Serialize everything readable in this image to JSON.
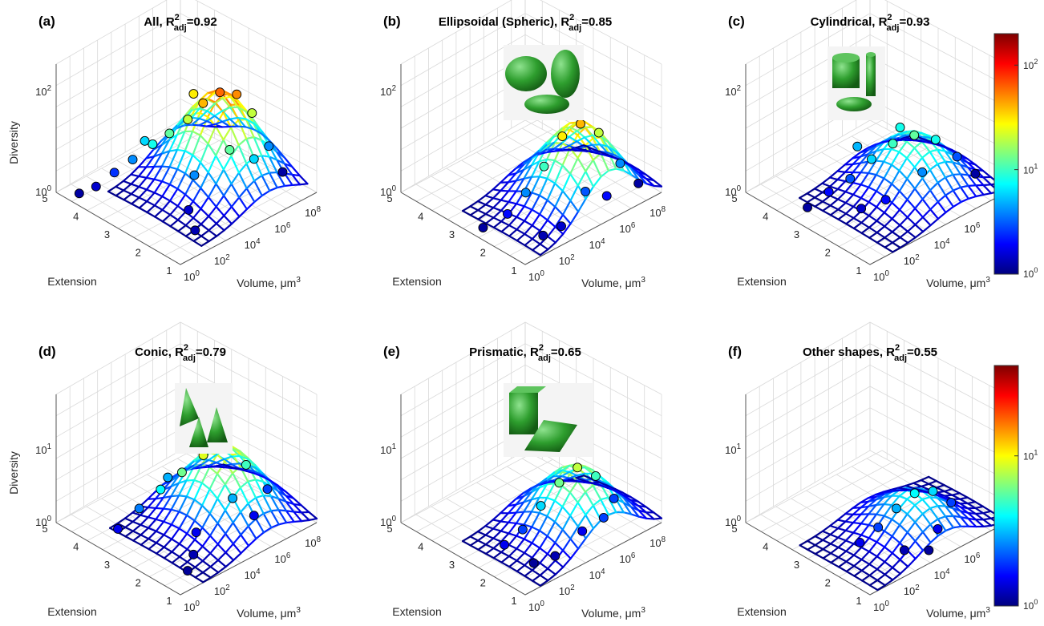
{
  "chart_data": [
    {
      "type": "surface",
      "panel": "(a)",
      "title": "All, ",
      "r2_value": "0.92",
      "xlabel": "Volume, μm",
      "ylabel": "Extension",
      "zlabel": "Diversity",
      "x_ticks": [
        "10^0",
        "10^2",
        "10^4",
        "10^6",
        "10^8"
      ],
      "y_ticks": [
        "1",
        "2",
        "3",
        "4",
        "5"
      ],
      "z_ticks": [
        "10^0",
        "10^2"
      ],
      "z_scale": "log",
      "zlim": [
        1,
        200
      ],
      "shape_icon": "",
      "points": [
        {
          "x": 0.5,
          "y": 4.5,
          "z": 1.2
        },
        {
          "x": 1.2,
          "y": 4.3,
          "z": 1.5
        },
        {
          "x": 2.0,
          "y": 4.1,
          "z": 2.5
        },
        {
          "x": 2.8,
          "y": 3.9,
          "z": 4
        },
        {
          "x": 3.5,
          "y": 3.6,
          "z": 8
        },
        {
          "x": 4.2,
          "y": 3.4,
          "z": 12
        },
        {
          "x": 5.0,
          "y": 3.2,
          "z": 20
        },
        {
          "x": 5.6,
          "y": 3.0,
          "z": 40
        },
        {
          "x": 6.3,
          "y": 2.8,
          "z": 60
        },
        {
          "x": 7.0,
          "y": 2.6,
          "z": 50
        },
        {
          "x": 7.6,
          "y": 2.4,
          "z": 20
        },
        {
          "x": 8.3,
          "y": 2.2,
          "z": 4
        },
        {
          "x": 8.8,
          "y": 2.0,
          "z": 1.2
        },
        {
          "x": 4.0,
          "y": 2.5,
          "z": 4
        },
        {
          "x": 5.3,
          "y": 2.0,
          "z": 12
        },
        {
          "x": 6.5,
          "y": 1.8,
          "z": 6
        },
        {
          "x": 3.0,
          "y": 2.2,
          "z": 1.5
        },
        {
          "x": 2.2,
          "y": 1.6,
          "z": 1.3
        },
        {
          "x": 6.2,
          "y": 3.6,
          "z": 30
        },
        {
          "x": 3.8,
          "y": 4.0,
          "z": 6
        }
      ]
    },
    {
      "type": "surface",
      "panel": "(b)",
      "title": "Ellipsoidal (Spheric), ",
      "r2_value": "0.85",
      "xlabel": "Volume, μm",
      "ylabel": "Extension",
      "zlabel": "",
      "x_ticks": [
        "10^0",
        "10^2",
        "10^4",
        "10^6",
        "10^8"
      ],
      "y_ticks": [
        "1",
        "2",
        "3",
        "4",
        "5"
      ],
      "z_ticks": [
        "10^0",
        "10^2"
      ],
      "z_scale": "log",
      "zlim": [
        1,
        200
      ],
      "shape_icon": "ellipsoids",
      "points": [
        {
          "x": 0.5,
          "y": 2.6,
          "z": 1.2
        },
        {
          "x": 1.5,
          "y": 2.3,
          "z": 2
        },
        {
          "x": 2.5,
          "y": 2.2,
          "z": 4
        },
        {
          "x": 3.5,
          "y": 2.1,
          "z": 10
        },
        {
          "x": 4.5,
          "y": 2.0,
          "z": 30
        },
        {
          "x": 5.5,
          "y": 1.9,
          "z": 40
        },
        {
          "x": 6.5,
          "y": 1.8,
          "z": 20
        },
        {
          "x": 7.5,
          "y": 1.6,
          "z": 4
        },
        {
          "x": 8.5,
          "y": 1.5,
          "z": 1.2
        },
        {
          "x": 2.0,
          "y": 1.4,
          "z": 1.3
        },
        {
          "x": 3.0,
          "y": 1.3,
          "z": 1.5
        },
        {
          "x": 5.0,
          "y": 1.5,
          "z": 3
        },
        {
          "x": 6.0,
          "y": 1.3,
          "z": 2
        }
      ]
    },
    {
      "type": "surface",
      "panel": "(c)",
      "title": "Cylindrical, ",
      "r2_value": "0.93",
      "xlabel": "Volume, μm",
      "ylabel": "Extension",
      "zlabel": "",
      "x_ticks": [
        "10^0",
        "10^2",
        "10^4",
        "10^6",
        "10^8"
      ],
      "y_ticks": [
        "1",
        "2",
        "3",
        "4",
        "5"
      ],
      "z_ticks": [
        "10^0",
        "10^2"
      ],
      "z_scale": "log",
      "zlim": [
        1,
        200
      ],
      "shape_icon": "cylinders",
      "points": [
        {
          "x": 1.0,
          "y": 3.5,
          "z": 1.2
        },
        {
          "x": 2.0,
          "y": 3.3,
          "z": 2
        },
        {
          "x": 3.0,
          "y": 3.1,
          "z": 3
        },
        {
          "x": 4.0,
          "y": 2.9,
          "z": 6
        },
        {
          "x": 5.0,
          "y": 2.7,
          "z": 10
        },
        {
          "x": 6.0,
          "y": 2.5,
          "z": 12
        },
        {
          "x": 7.0,
          "y": 2.3,
          "z": 8
        },
        {
          "x": 8.0,
          "y": 2.1,
          "z": 3
        },
        {
          "x": 8.8,
          "y": 1.9,
          "z": 1.2
        },
        {
          "x": 3.5,
          "y": 2.2,
          "z": 2
        },
        {
          "x": 5.5,
          "y": 2.0,
          "z": 4
        },
        {
          "x": 2.5,
          "y": 2.5,
          "z": 1.5
        },
        {
          "x": 4.5,
          "y": 3.6,
          "z": 5
        },
        {
          "x": 6.5,
          "y": 3.2,
          "z": 8
        }
      ]
    },
    {
      "type": "surface",
      "panel": "(d)",
      "title": "Conic, ",
      "r2_value": "0.79",
      "xlabel": "Volume, μm",
      "ylabel": "Extension",
      "zlabel": "Diversity",
      "x_ticks": [
        "10^0",
        "10^2",
        "10^4",
        "10^6",
        "10^8"
      ],
      "y_ticks": [
        "1",
        "2",
        "3",
        "4",
        "5"
      ],
      "z_ticks": [
        "10^0",
        "10^1"
      ],
      "z_scale": "log",
      "zlim": [
        1,
        40
      ],
      "shape_icon": "cones",
      "points": [
        {
          "x": 1.0,
          "y": 3.5,
          "z": 1.5
        },
        {
          "x": 2.0,
          "y": 3.3,
          "z": 2.5
        },
        {
          "x": 3.0,
          "y": 3.1,
          "z": 4
        },
        {
          "x": 4.0,
          "y": 2.9,
          "z": 6
        },
        {
          "x": 5.0,
          "y": 2.7,
          "z": 9
        },
        {
          "x": 6.0,
          "y": 2.5,
          "z": 10
        },
        {
          "x": 7.0,
          "y": 2.3,
          "z": 5
        },
        {
          "x": 8.0,
          "y": 2.1,
          "z": 2
        },
        {
          "x": 3.5,
          "y": 2.2,
          "z": 1.5
        },
        {
          "x": 5.5,
          "y": 2.0,
          "z": 3
        },
        {
          "x": 2.5,
          "y": 1.8,
          "z": 1.2
        },
        {
          "x": 1.5,
          "y": 1.5,
          "z": 1.1
        },
        {
          "x": 6.5,
          "y": 1.8,
          "z": 1.5
        },
        {
          "x": 4.5,
          "y": 3.6,
          "z": 3
        }
      ]
    },
    {
      "type": "surface",
      "panel": "(e)",
      "title": "Prismatic, ",
      "r2_value": "0.65",
      "xlabel": "Volume, μm",
      "ylabel": "Extension",
      "zlabel": "",
      "x_ticks": [
        "10^0",
        "10^2",
        "10^4",
        "10^6",
        "10^8"
      ],
      "y_ticks": [
        "1",
        "2",
        "3",
        "4",
        "5"
      ],
      "z_ticks": [
        "10^0",
        "10^1"
      ],
      "z_scale": "log",
      "zlim": [
        1,
        40
      ],
      "shape_icon": "prisms",
      "points": [
        {
          "x": 1.5,
          "y": 2.4,
          "z": 1.5
        },
        {
          "x": 2.5,
          "y": 2.3,
          "z": 2
        },
        {
          "x": 3.5,
          "y": 2.2,
          "z": 3.5
        },
        {
          "x": 4.5,
          "y": 2.1,
          "z": 6
        },
        {
          "x": 5.5,
          "y": 2.0,
          "z": 8
        },
        {
          "x": 6.5,
          "y": 1.9,
          "z": 5
        },
        {
          "x": 7.5,
          "y": 1.8,
          "z": 2
        },
        {
          "x": 3.0,
          "y": 1.5,
          "z": 1.2
        },
        {
          "x": 5.0,
          "y": 1.6,
          "z": 1.5
        },
        {
          "x": 6.0,
          "y": 1.4,
          "z": 2
        },
        {
          "x": 2.0,
          "y": 1.7,
          "z": 1.1
        }
      ]
    },
    {
      "type": "surface",
      "panel": "(f)",
      "title": "Other shapes, ",
      "r2_value": "0.55",
      "xlabel": "Volume, μm",
      "ylabel": "Extension",
      "zlabel": "",
      "x_ticks": [
        "10^0",
        "10^2",
        "10^4",
        "10^6",
        "10^8"
      ],
      "y_ticks": [
        "1",
        "2",
        "3",
        "4",
        "5"
      ],
      "z_ticks": [
        "10^0",
        "10^1"
      ],
      "z_scale": "log",
      "zlim": [
        1,
        40
      ],
      "shape_icon": "",
      "points": [
        {
          "x": 2.0,
          "y": 2.3,
          "z": 1.5
        },
        {
          "x": 3.0,
          "y": 2.2,
          "z": 2
        },
        {
          "x": 4.0,
          "y": 2.1,
          "z": 3
        },
        {
          "x": 5.0,
          "y": 2.0,
          "z": 4
        },
        {
          "x": 6.0,
          "y": 1.9,
          "z": 3.5
        },
        {
          "x": 7.0,
          "y": 1.8,
          "z": 2
        },
        {
          "x": 3.5,
          "y": 1.6,
          "z": 1.2
        },
        {
          "x": 5.5,
          "y": 1.5,
          "z": 1.5
        },
        {
          "x": 4.5,
          "y": 1.3,
          "z": 1.1
        }
      ]
    }
  ],
  "colorbars": [
    {
      "name": "top",
      "scale": "log",
      "ticks": [
        "10^0",
        "10^1",
        "10^2"
      ],
      "range": [
        1,
        200
      ]
    },
    {
      "name": "bottom",
      "scale": "log",
      "ticks": [
        "10^0",
        "10^1"
      ],
      "range": [
        1,
        40
      ]
    }
  ],
  "colors": {
    "colormap": [
      "#00007f",
      "#0000ff",
      "#007fff",
      "#00ffff",
      "#7fff7f",
      "#ffff00",
      "#ff7f00",
      "#ff0000",
      "#7f0000"
    ],
    "icon_fill": "#2e9e2e",
    "grid": "#d9d9d9",
    "axis_text": "#262626"
  }
}
